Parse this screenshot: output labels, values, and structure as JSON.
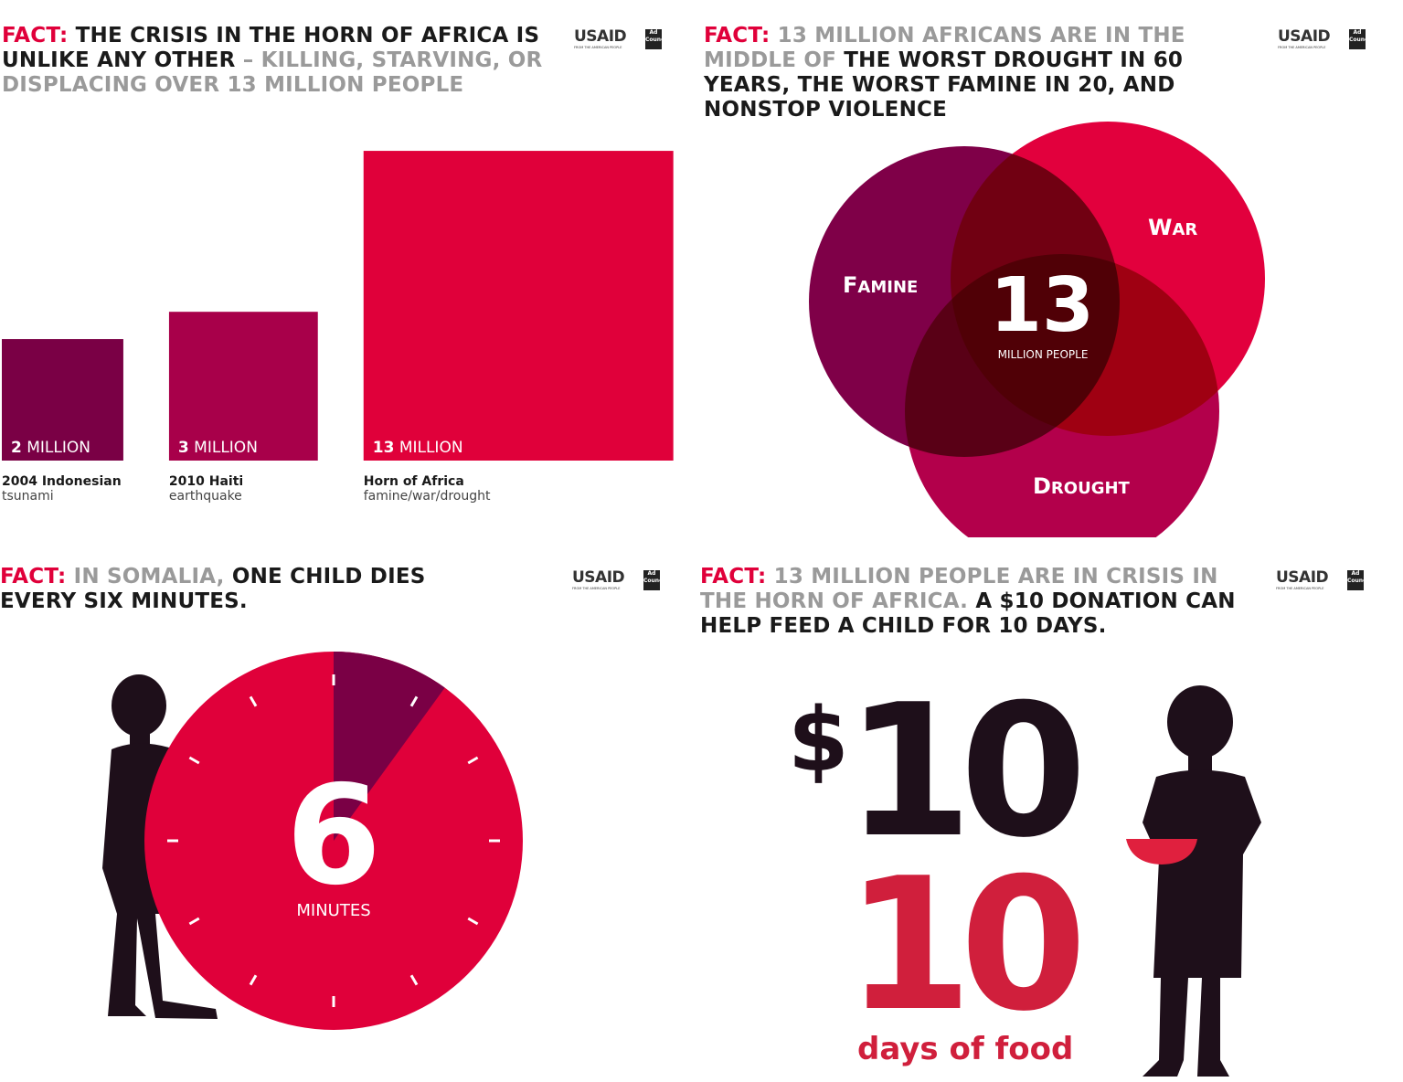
{
  "panels": [
    {
      "title": [
        {
          "text": "FACT:",
          "tone": "red"
        },
        {
          "text": "THE CRISIS IN THE HORN OF AFRICA IS UNLIKE ANY OTHER",
          "tone": "dark"
        },
        {
          "text": "– KILLING, STARVING, OR DISPLACING OVER 13 MILLION PEOPLE",
          "tone": "gray"
        }
      ],
      "logo": {
        "name": "USAID",
        "tagline": "FROM THE AMERICAN PEOPLE",
        "partner": [
          "Ad",
          "Council"
        ]
      },
      "bars": [
        {
          "value": 2,
          "unit": "MILLION",
          "caption_bold": "2004 Indonesian",
          "caption": "tsunami",
          "color": "#7a0045"
        },
        {
          "value": 3,
          "unit": "MILLION",
          "caption_bold": "2010 Haiti",
          "caption": "earthquake",
          "color": "#a8004a"
        },
        {
          "value": 13,
          "unit": "MILLION",
          "caption_bold": "Horn of Africa",
          "caption": "famine/war/drought",
          "color": "#e0003a"
        }
      ]
    },
    {
      "title": [
        {
          "text": "FACT:",
          "tone": "red"
        },
        {
          "text": "13 MILLION AFRICANS ARE IN THE MIDDLE OF",
          "tone": "gray"
        },
        {
          "text": "THE WORST DROUGHT IN 60 YEARS, THE WORST FAMINE IN 20, AND NONSTOP VIOLENCE",
          "tone": "dark"
        }
      ],
      "logo": {
        "name": "USAID",
        "tagline": "FROM THE AMERICAN PEOPLE",
        "partner": [
          "Ad",
          "Council"
        ]
      },
      "venn": {
        "sets": [
          "FAMINE",
          "WAR",
          "DROUGHT"
        ],
        "center_value": 13,
        "center_label": "MILLION PEOPLE"
      }
    },
    {
      "title": [
        {
          "text": "FACT:",
          "tone": "red"
        },
        {
          "text": "IN SOMALIA,",
          "tone": "gray"
        },
        {
          "text": "ONE CHILD DIES EVERY SIX MINUTES.",
          "tone": "dark"
        }
      ],
      "logo": {
        "name": "USAID",
        "tagline": "FROM THE AMERICAN PEOPLE",
        "partner": [
          "Ad",
          "Council"
        ]
      },
      "clock": {
        "value": 6,
        "label": "MINUTES"
      }
    },
    {
      "title": [
        {
          "text": "FACT:",
          "tone": "red"
        },
        {
          "text": "13 MILLION PEOPLE ARE IN CRISIS IN THE HORN OF AFRICA.",
          "tone": "gray"
        },
        {
          "text": "A $10 DONATION CAN HELP FEED A CHILD FOR 10 DAYS.",
          "tone": "dark"
        }
      ],
      "logo": {
        "name": "USAID",
        "tagline": "FROM THE AMERICAN PEOPLE",
        "partner": [
          "Ad",
          "Council"
        ]
      },
      "donation": {
        "currency": "$",
        "amount": 10,
        "days": 10,
        "days_label": "days of food"
      }
    }
  ]
}
